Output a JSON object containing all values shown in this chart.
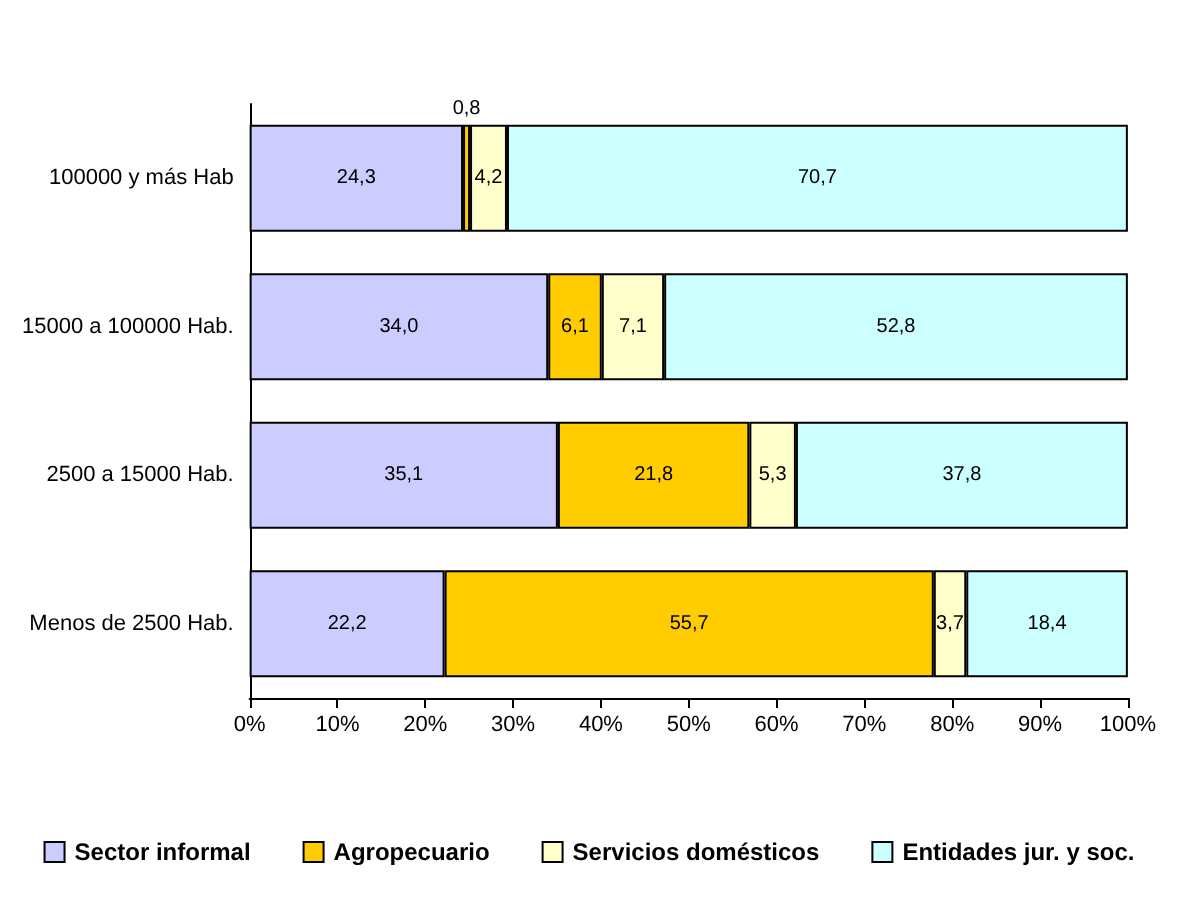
{
  "chart_data": {
    "type": "bar",
    "orientation": "horizontal",
    "stacked": true,
    "categories": [
      "100000 y más Hab",
      "15000 a 100000 Hab.",
      "2500 a 15000 Hab.",
      "Menos de 2500 Hab."
    ],
    "series": [
      {
        "name": "Sector informal",
        "color": "#ccccff",
        "values": [
          24.3,
          34.0,
          35.1,
          22.2
        ],
        "value_labels": [
          "24,3",
          "34,0",
          "35,1",
          "22,2"
        ]
      },
      {
        "name": "Agropecuario",
        "color": "#ffcc00",
        "values": [
          0.8,
          6.1,
          21.8,
          55.7
        ],
        "value_labels": [
          "0,8",
          "6,1",
          "21,8",
          "55,7"
        ]
      },
      {
        "name": "Servicios domésticos",
        "color": "#ffffcc",
        "values": [
          4.2,
          7.1,
          5.3,
          3.7
        ],
        "value_labels": [
          "4,2",
          "7,1",
          "5,3",
          "3,7"
        ]
      },
      {
        "name": "Entidades jur. y soc.",
        "color": "#ccffff",
        "values": [
          70.7,
          52.8,
          37.8,
          18.4
        ],
        "value_labels": [
          "70,7",
          "52,8",
          "37,8",
          "18,4"
        ]
      }
    ],
    "xlim": [
      0,
      100
    ],
    "xticks": [
      {
        "value": 0,
        "label": "0%"
      },
      {
        "value": 10,
        "label": "10%"
      },
      {
        "value": 20,
        "label": "20%"
      },
      {
        "value": 30,
        "label": "30%"
      },
      {
        "value": 40,
        "label": "40%"
      },
      {
        "value": 50,
        "label": "50%"
      },
      {
        "value": 60,
        "label": "60%"
      },
      {
        "value": 70,
        "label": "70%"
      },
      {
        "value": 80,
        "label": "80%"
      },
      {
        "value": 90,
        "label": "90%"
      },
      {
        "value": 100,
        "label": "100%"
      }
    ],
    "grid": false,
    "legend": "bottom"
  }
}
